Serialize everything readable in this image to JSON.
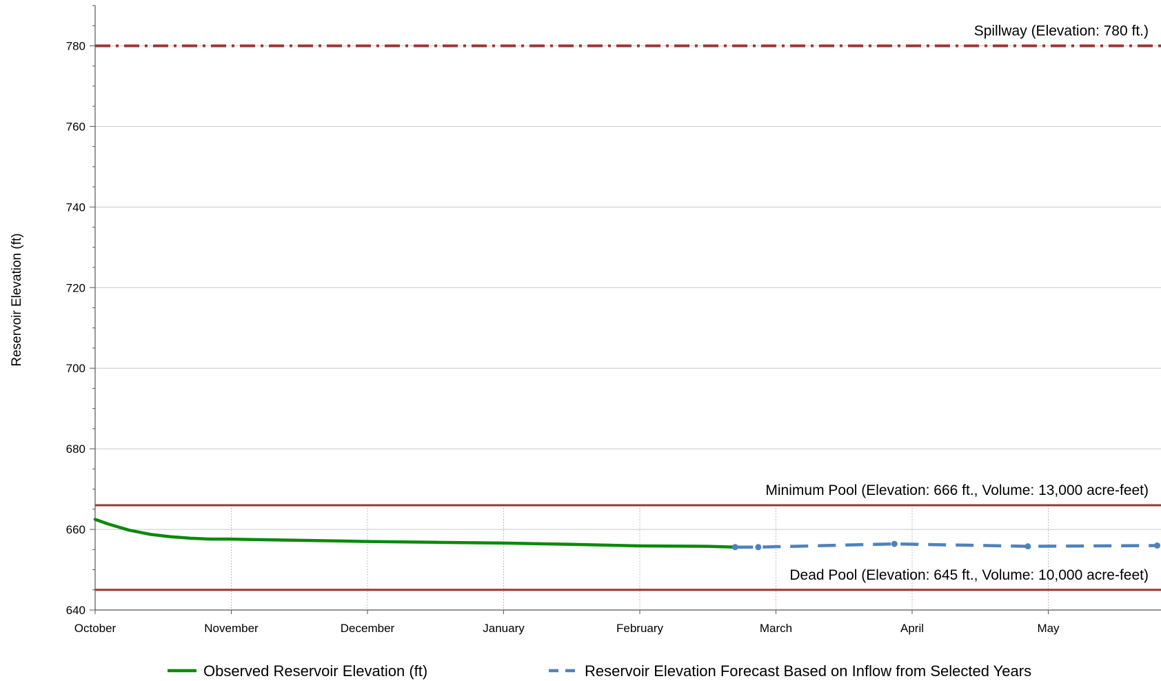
{
  "chart_data": {
    "type": "line",
    "title": "",
    "xlabel": "",
    "ylabel": "Reservoir Elevation (ft)",
    "ylim": [
      640,
      790
    ],
    "y_ticks": [
      640,
      660,
      680,
      700,
      720,
      740,
      760,
      780
    ],
    "x_categories": [
      "October",
      "November",
      "December",
      "January",
      "February",
      "March",
      "April",
      "May"
    ],
    "x_range_months": [
      0,
      7.8
    ],
    "grid": "horizontal major gridlines; vertical gridlines at month ticks below the minimum pool line",
    "legend_position": "bottom",
    "reference_lines": [
      {
        "label": "Spillway (Elevation: 780 ft.)",
        "y": 780,
        "color": "#9E3434",
        "style": "dash-dot"
      },
      {
        "label": "Minimum Pool (Elevation: 666 ft., Volume: 13,000 acre-feet)",
        "y": 666,
        "color": "#9E3434",
        "style": "solid"
      },
      {
        "label": "Dead Pool (Elevation: 645 ft., Volume: 10,000 acre-feet)",
        "y": 645,
        "color": "#9E3434",
        "style": "solid"
      }
    ],
    "series": [
      {
        "name": "Observed Reservoir Elevation (ft)",
        "color": "#0A8A0A",
        "style": "solid",
        "x": [
          0,
          0.1,
          0.25,
          0.4,
          0.55,
          0.7,
          0.85,
          1.0,
          1.15,
          1.5,
          2.0,
          2.5,
          3.0,
          3.5,
          4.0,
          4.5,
          4.7
        ],
        "y": [
          662.5,
          661.3,
          659.8,
          658.8,
          658.2,
          657.8,
          657.6,
          657.6,
          657.5,
          657.3,
          657.0,
          656.8,
          656.6,
          656.3,
          655.9,
          655.8,
          655.6
        ]
      },
      {
        "name": "Reservoir Elevation Forecast Based on Inflow from Selected Years",
        "color": "#4F81BD",
        "style": "dashed",
        "x": [
          4.7,
          4.87,
          5.87,
          6.85,
          7.8
        ],
        "y": [
          655.6,
          655.6,
          656.4,
          655.8,
          656.0
        ],
        "markers": true
      }
    ]
  }
}
